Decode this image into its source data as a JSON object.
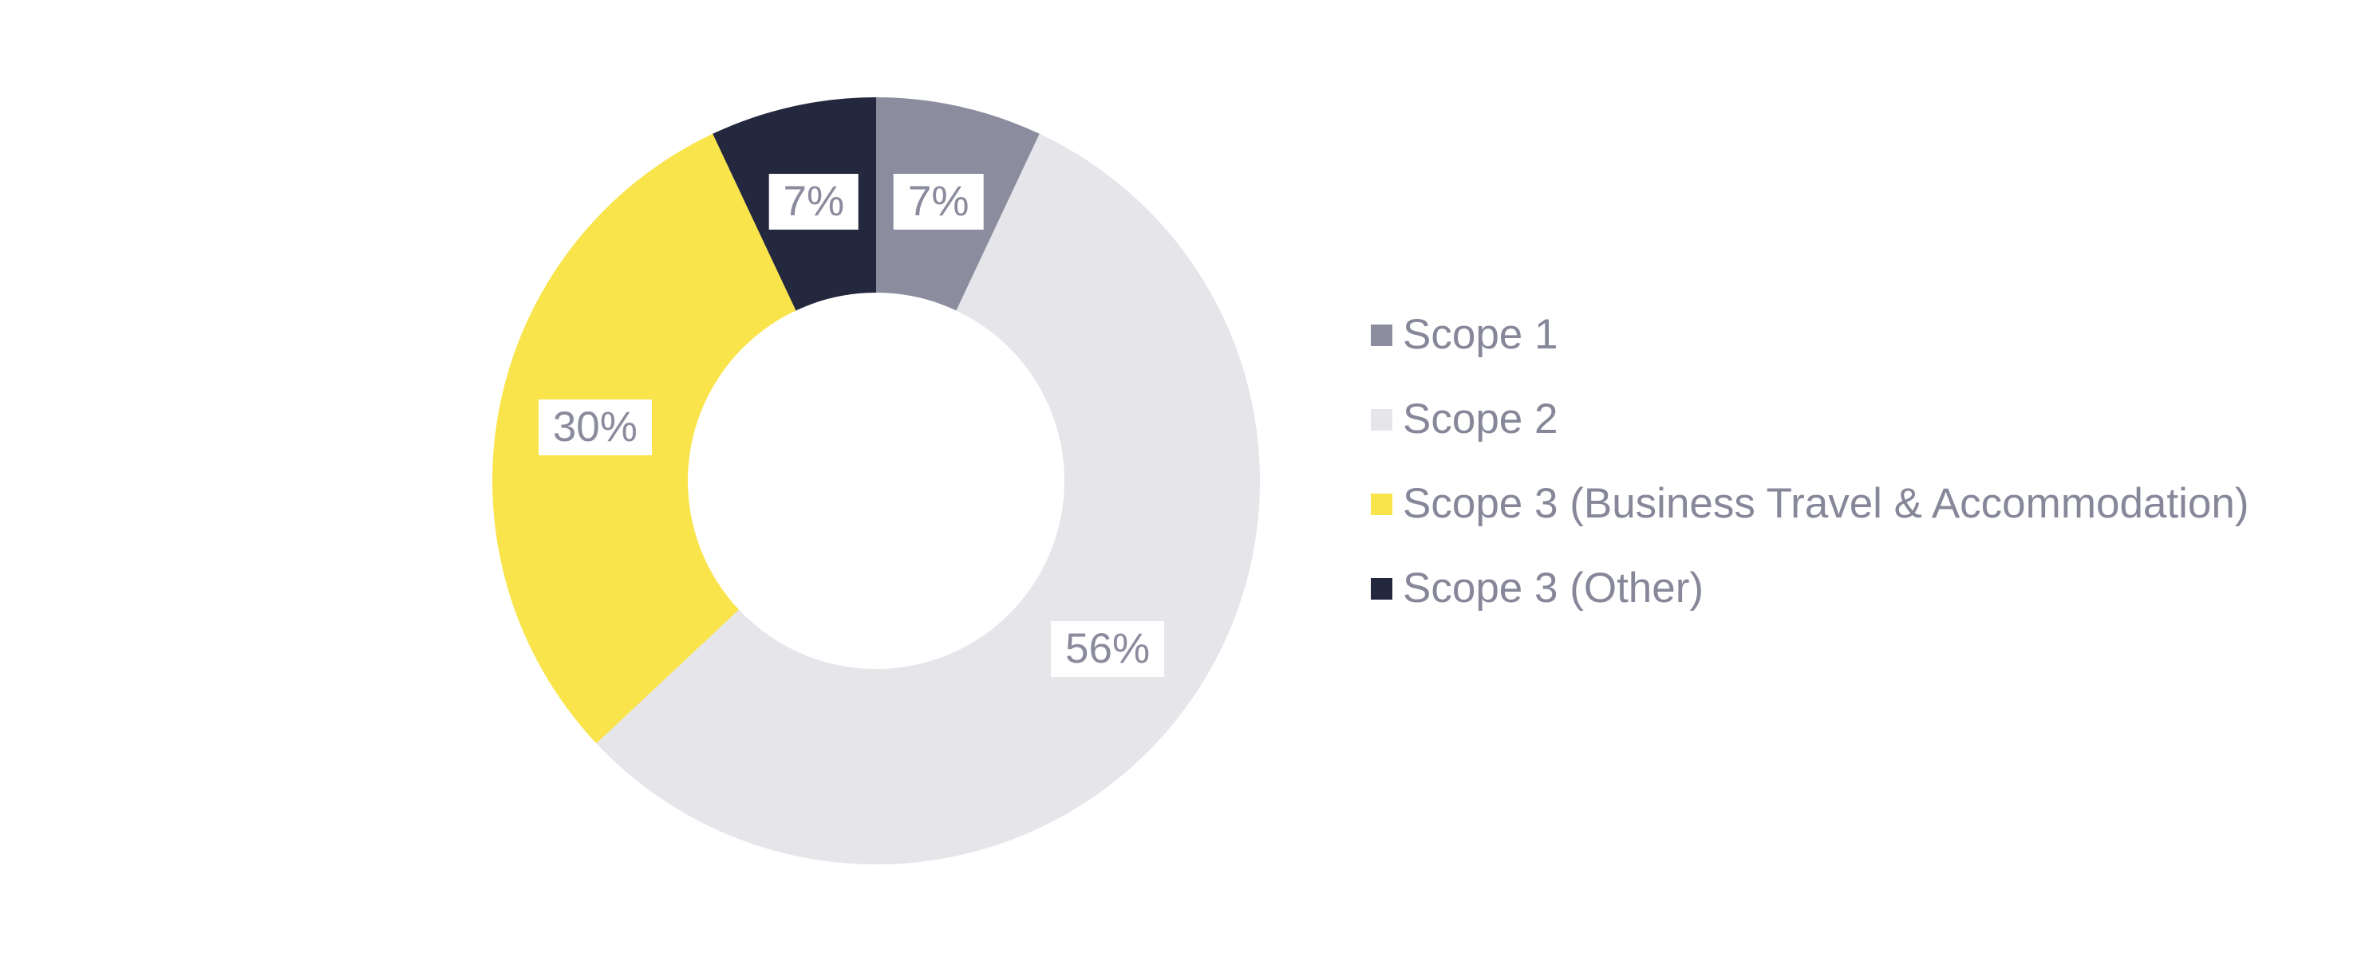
{
  "chart_data": {
    "type": "pie",
    "subtype": "donut",
    "donut_hole_ratio": 0.49,
    "start_angle_deg": 0,
    "direction": "clockwise",
    "legend_position": "right",
    "grid": false,
    "label_suffix": "%",
    "total": 100,
    "series": [
      {
        "name": "Scope 1",
        "value": 7,
        "color": "#8B8C9E"
      },
      {
        "name": "Scope 2",
        "value": 56,
        "color": "#E5E5EA"
      },
      {
        "name": "Scope 3 (Business Travel & Accommodation)",
        "value": 30,
        "color": "#F9E44B"
      },
      {
        "name": "Scope 3 (Other)",
        "value": 7,
        "color": "#23283E"
      }
    ],
    "slice_labels": [
      "7%",
      "56%",
      "30%",
      "7%"
    ],
    "colors": {
      "background": "#FFFFFF",
      "slice_label_bg": "#FFFFFF",
      "slice_label_text": "#8A8B9C",
      "legend_text": "#868799"
    }
  }
}
